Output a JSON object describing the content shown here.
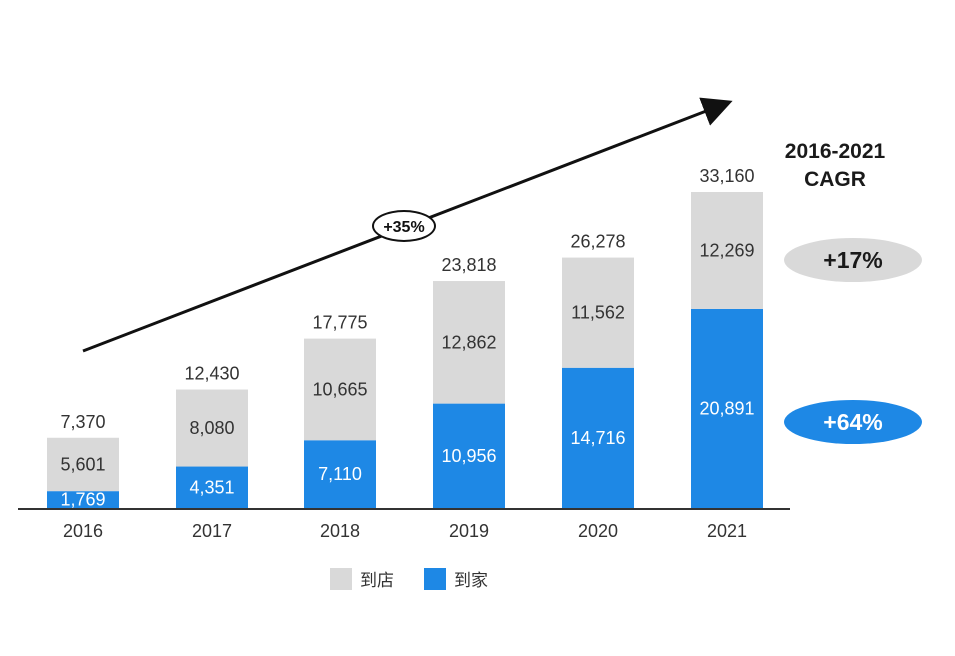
{
  "chart_data": {
    "type": "bar",
    "stacked": true,
    "categories": [
      "2016",
      "2017",
      "2018",
      "2019",
      "2020",
      "2021"
    ],
    "series": [
      {
        "name": "到家",
        "values": [
          1769,
          4351,
          7110,
          10956,
          14716,
          20891
        ],
        "color": "#1e88e5"
      },
      {
        "name": "到店",
        "values": [
          5601,
          8080,
          10665,
          12862,
          11562,
          12269
        ],
        "color": "#d9d9d9"
      }
    ],
    "totals": [
      7370,
      12430,
      17775,
      23818,
      26278,
      33160
    ],
    "total_labels": [
      "7,370",
      "12,430",
      "17,775",
      "23,818",
      "26,278",
      "33,160"
    ],
    "value_labels": {
      "到家": [
        "1,769",
        "4,351",
        "7,110",
        "10,956",
        "14,716",
        "20,891"
      ],
      "到店": [
        "5,601",
        "8,080",
        "10,665",
        "12,862",
        "11,562",
        "12,269"
      ]
    },
    "ylim": [
      0,
      33160
    ],
    "legend_placement": "bottom",
    "annotations": {
      "overall_growth": "+35%",
      "cagr_title_line1": "2016-2021",
      "cagr_title_line2": "CAGR",
      "cagr_store": "+17%",
      "cagr_home": "+64%"
    }
  }
}
